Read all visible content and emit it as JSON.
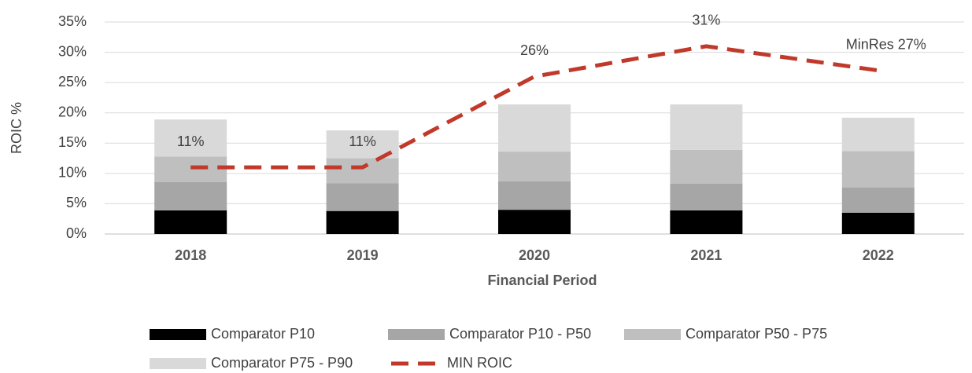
{
  "chart_data": {
    "type": "bar",
    "categories": [
      "2018",
      "2019",
      "2020",
      "2021",
      "2022"
    ],
    "x_label": "Financial Period",
    "y_label": "ROIC %",
    "ylim": [
      0,
      35
    ],
    "yticks": [
      {
        "value": 0,
        "label": "0%"
      },
      {
        "value": 5,
        "label": "5%"
      },
      {
        "value": 10,
        "label": "10%"
      },
      {
        "value": 15,
        "label": "15%"
      },
      {
        "value": 20,
        "label": "20%"
      },
      {
        "value": 25,
        "label": "25%"
      },
      {
        "value": 30,
        "label": "30%"
      },
      {
        "value": 35,
        "label": "35%"
      }
    ],
    "grid": true,
    "legend": "bottom",
    "series": [
      {
        "name": "Comparator P10",
        "color": "#000000",
        "values": [
          3.9,
          3.8,
          4.0,
          3.9,
          3.5
        ]
      },
      {
        "name": "Comparator P10 - P50",
        "color": "#a6a6a6",
        "values": [
          4.7,
          4.6,
          4.7,
          4.4,
          4.2
        ]
      },
      {
        "name": "Comparator P50 - P75",
        "color": "#bfbfbf",
        "values": [
          4.2,
          4.1,
          4.9,
          5.6,
          6.0
        ]
      },
      {
        "name": "Comparator P75 - P90",
        "color": "#d9d9d9",
        "values": [
          6.1,
          4.6,
          7.8,
          7.5,
          5.5
        ]
      },
      {
        "name": "MIN ROIC",
        "type": "line",
        "color": "#c0392b",
        "values": [
          11,
          11,
          26,
          31,
          27
        ],
        "value_labels": [
          "11%",
          "11%",
          "26%",
          "31%",
          "MinRes 27%"
        ]
      }
    ]
  }
}
